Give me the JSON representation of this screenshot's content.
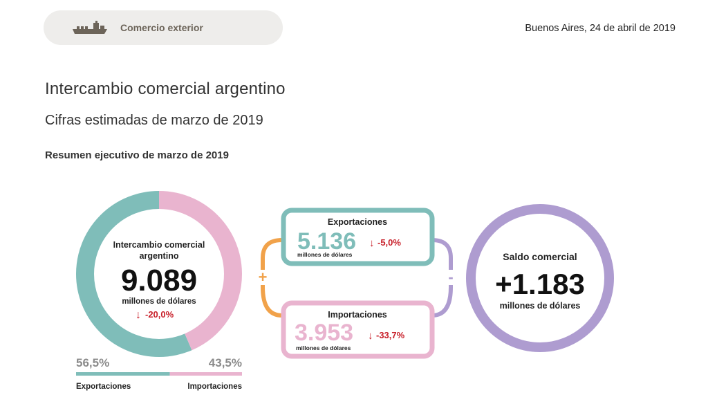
{
  "header": {
    "section_label": "Comercio exterior",
    "section_icon": "ship-icon",
    "date": "Buenos Aires, 24 de abril de 2019"
  },
  "title": "Intercambio comercial argentino",
  "subtitle": "Cifras estimadas de marzo de 2019",
  "summary_heading": "Resumen ejecutivo de marzo de 2019",
  "donut": {
    "title_line1": "Intercambio comercial",
    "title_line2": "argentino",
    "value": "9.089",
    "unit": "millones de dólares",
    "change": "-20,0%",
    "exports_share": 56.5,
    "imports_share": 43.5,
    "exports_pct_label": "56,5%",
    "imports_pct_label": "43,5%",
    "exports_label": "Exportaciones",
    "imports_label": "Importaciones"
  },
  "exports_box": {
    "title": "Exportaciones",
    "value": "5.136",
    "change": "-5,0%",
    "unit": "millones de dólares"
  },
  "imports_box": {
    "title": "Importaciones",
    "value": "3.953",
    "change": "-33,7%",
    "unit": "millones de dólares"
  },
  "operators": {
    "plus": "+",
    "minus": "-"
  },
  "balance": {
    "title": "Saldo comercial",
    "value": "+1.183",
    "unit": "millones de dólares"
  },
  "colors": {
    "exports": "#7fbdb9",
    "imports": "#e9b4cf",
    "balance": "#ae9cd0",
    "operator": "#f1a24a",
    "down": "#c8202a",
    "pill_bg": "#eeedeb",
    "pill_text": "#6c6459"
  }
}
